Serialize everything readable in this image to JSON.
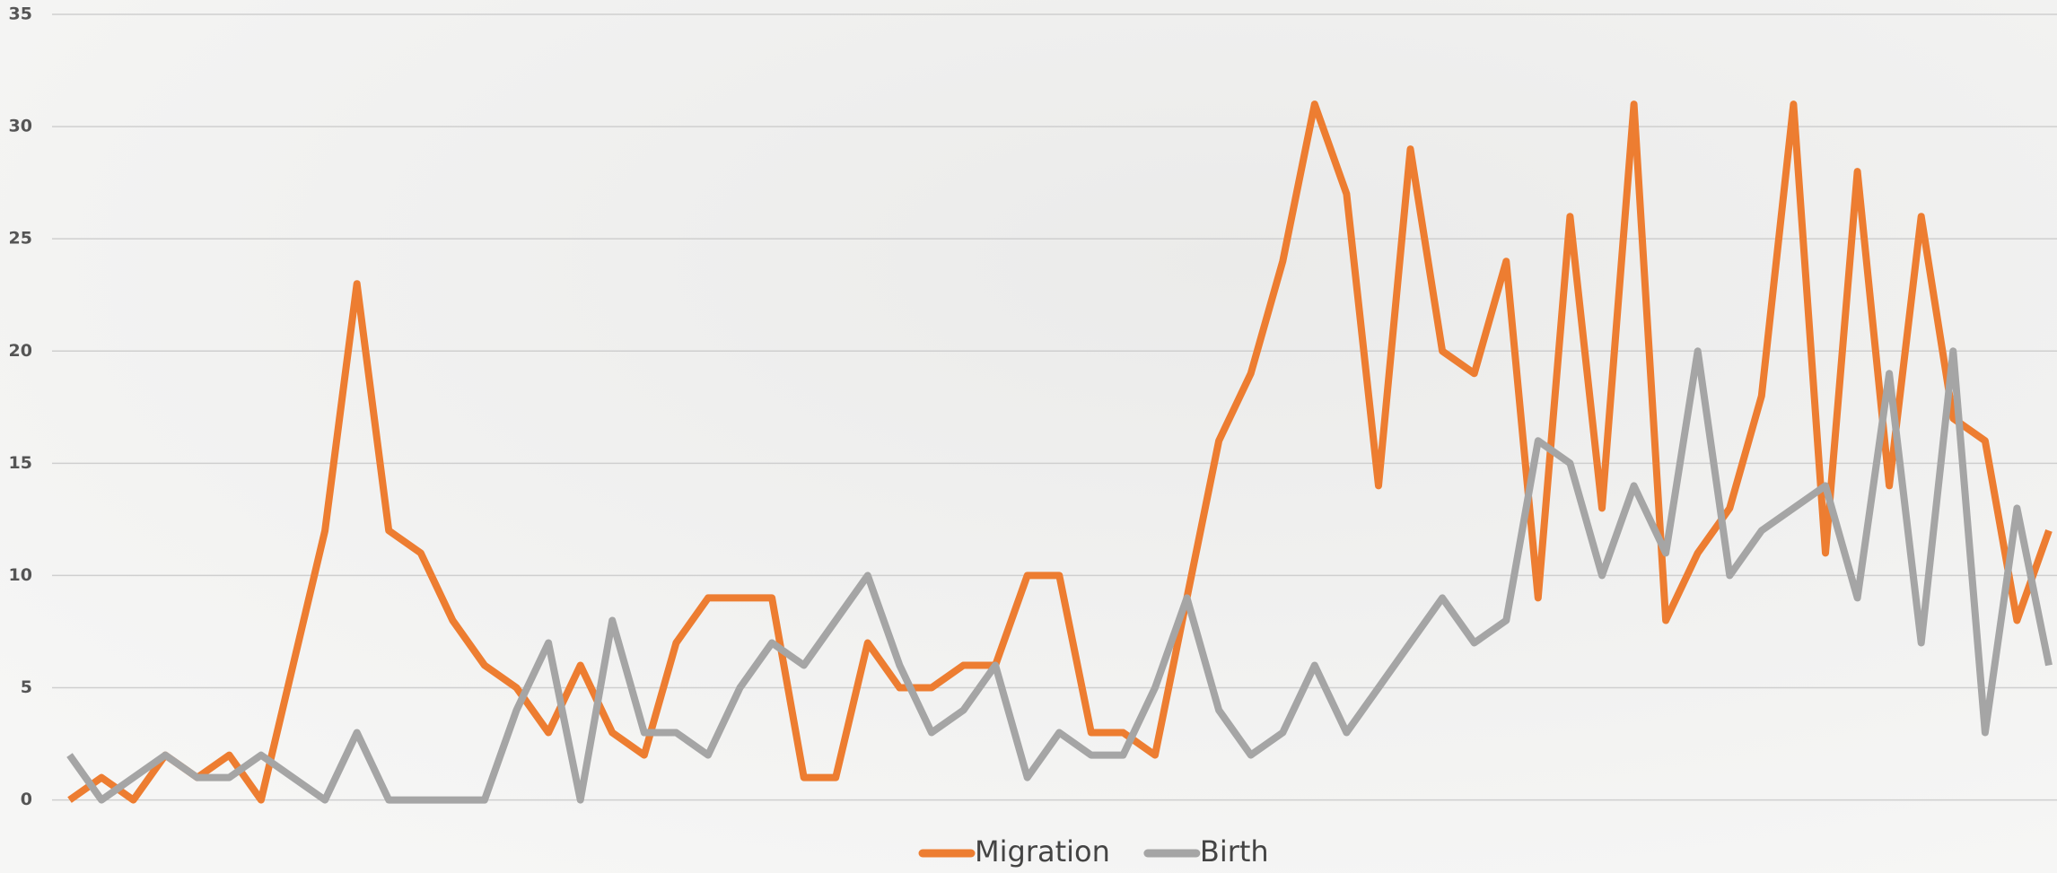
{
  "chart_data": {
    "type": "line",
    "categories": [
      null,
      null,
      null,
      null,
      null,
      null,
      null,
      null,
      null,
      null,
      null,
      null,
      null,
      null,
      null,
      null,
      null,
      null,
      null,
      null,
      null,
      null,
      null,
      null,
      null,
      null,
      null,
      null,
      null,
      null,
      null,
      null,
      null,
      null,
      null,
      null,
      null,
      null,
      null,
      null,
      null,
      null,
      null,
      null,
      null,
      null,
      null,
      null,
      null,
      null,
      null,
      null,
      null,
      null,
      null,
      null,
      null,
      null,
      null,
      null,
      null,
      null,
      null
    ],
    "series": [
      {
        "name": "Migration",
        "color": "#ed7d31",
        "values": [
          0,
          1,
          0,
          2,
          1,
          2,
          0,
          6,
          12,
          23,
          12,
          11,
          8,
          6,
          5,
          3,
          6,
          3,
          2,
          7,
          9,
          9,
          9,
          1,
          1,
          7,
          5,
          5,
          6,
          6,
          10,
          10,
          3,
          3,
          2,
          9,
          16,
          19,
          24,
          31,
          27,
          14,
          29,
          20,
          19,
          24,
          9,
          26,
          13,
          31,
          8,
          11,
          13,
          18,
          31,
          11,
          28,
          14,
          26,
          17,
          16,
          8,
          12
        ]
      },
      {
        "name": "Birth",
        "color": "#a5a5a5",
        "values": [
          2,
          0,
          1,
          2,
          1,
          1,
          2,
          1,
          0,
          3,
          0,
          0,
          0,
          0,
          4,
          7,
          0,
          8,
          3,
          3,
          2,
          5,
          7,
          6,
          8,
          10,
          6,
          3,
          4,
          6,
          1,
          3,
          2,
          2,
          5,
          9,
          4,
          2,
          3,
          6,
          3,
          5,
          7,
          9,
          7,
          8,
          16,
          15,
          10,
          14,
          11,
          20,
          10,
          12,
          13,
          14,
          9,
          19,
          7,
          20,
          3,
          13,
          6
        ]
      }
    ],
    "ylim": [
      0,
      35
    ],
    "yticks": [
      0,
      5,
      10,
      15,
      20,
      25,
      30,
      35
    ],
    "grid": true,
    "legend": "bottom"
  }
}
